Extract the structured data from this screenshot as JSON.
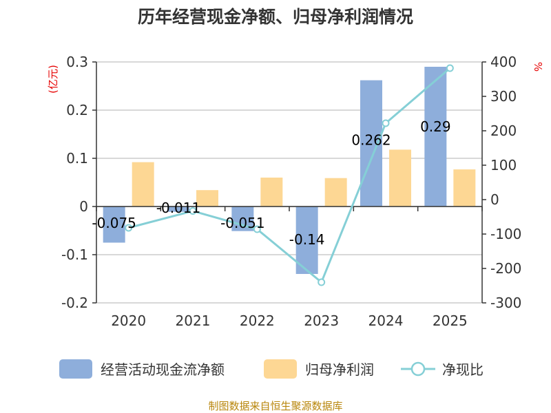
{
  "chart_data": {
    "type": "bar",
    "title": "历年经营现金净额、归母净利润情况",
    "categories": [
      "2020",
      "2021",
      "2022",
      "2023",
      "2024",
      "2025"
    ],
    "left_axis": {
      "unit": "(亿元)",
      "ylim": [
        -0.2,
        0.3
      ],
      "ticks": [
        "0.3",
        "0.2",
        "0.1",
        "0",
        "-0.1",
        "-0.2"
      ]
    },
    "right_axis": {
      "unit": "%",
      "ylim": [
        -300,
        400
      ],
      "ticks": [
        "400",
        "300",
        "200",
        "100",
        "0",
        "-100",
        "-200",
        "-300"
      ]
    },
    "series": [
      {
        "name": "经营活动现金流净额",
        "type": "bar",
        "axis": "left",
        "color": "#8eaedb",
        "values": [
          -0.075,
          -0.011,
          -0.051,
          -0.14,
          0.262,
          0.29
        ],
        "labels": [
          "-0.075",
          "-0.011",
          "-0.051",
          "-0.14",
          "0.262",
          "0.29"
        ]
      },
      {
        "name": "归母净利润",
        "type": "bar",
        "axis": "left",
        "color": "#fdd794",
        "values": [
          0.092,
          0.034,
          0.06,
          0.059,
          0.118,
          0.077
        ]
      },
      {
        "name": "净现比",
        "type": "line",
        "axis": "right",
        "color": "#85cfd6",
        "values": [
          -82,
          -33,
          -86,
          -240,
          222,
          382
        ]
      }
    ],
    "grid": true,
    "legend": "bottom"
  },
  "source": "制图数据来自恒生聚源数据库"
}
